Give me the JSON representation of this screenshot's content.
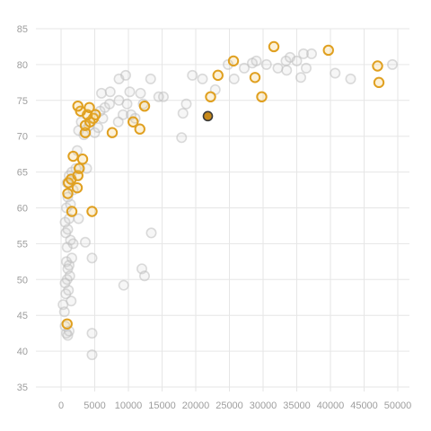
{
  "chart_data": {
    "type": "scatter",
    "title": "",
    "xlabel": "",
    "ylabel": "",
    "xlim": [
      -2000,
      52000
    ],
    "ylim": [
      34,
      86
    ],
    "x_ticks": [
      0,
      5000,
      10000,
      15000,
      20000,
      25000,
      30000,
      35000,
      40000,
      45000,
      50000
    ],
    "y_ticks": [
      35,
      40,
      45,
      50,
      55,
      60,
      65,
      70,
      75,
      80,
      85
    ],
    "grid": true,
    "colors": {
      "background_points": "#c8c8c8",
      "highlight_points": "#e0a020",
      "focus_point_fill": "#c7891a",
      "focus_point_stroke": "#3a3a3a",
      "grid": "#e6e6e6",
      "tick_label": "#9e9e9e"
    },
    "series": [
      {
        "role": "background",
        "points": [
          [
            300,
            46.5
          ],
          [
            500,
            45.5
          ],
          [
            600,
            43.5
          ],
          [
            800,
            42.5
          ],
          [
            1000,
            42.2
          ],
          [
            1200,
            42.8
          ],
          [
            700,
            48.0
          ],
          [
            900,
            50.0
          ],
          [
            600,
            49.5
          ],
          [
            1100,
            48.5
          ],
          [
            1500,
            47.0
          ],
          [
            1300,
            50.5
          ],
          [
            800,
            52.5
          ],
          [
            1000,
            51.5
          ],
          [
            1200,
            52.0
          ],
          [
            1600,
            53.0
          ],
          [
            900,
            54.5
          ],
          [
            1400,
            55.5
          ],
          [
            1800,
            55.0
          ],
          [
            3600,
            55.2
          ],
          [
            700,
            56.5
          ],
          [
            1000,
            57.0
          ],
          [
            600,
            58.0
          ],
          [
            1200,
            58.5
          ],
          [
            2600,
            58.5
          ],
          [
            800,
            60.0
          ],
          [
            1400,
            60.5
          ],
          [
            1000,
            61.5
          ],
          [
            1800,
            62.5
          ],
          [
            900,
            63.5
          ],
          [
            1200,
            64.5
          ],
          [
            1600,
            65.0
          ],
          [
            2200,
            65.5
          ],
          [
            3800,
            65.5
          ],
          [
            2400,
            68.0
          ],
          [
            4600,
            53.0
          ],
          [
            4600,
            42.5
          ],
          [
            4600,
            39.5
          ],
          [
            9300,
            49.2
          ],
          [
            12000,
            51.5
          ],
          [
            12400,
            50.5
          ],
          [
            13400,
            56.5
          ],
          [
            2600,
            70.8
          ],
          [
            3400,
            70.2
          ],
          [
            4200,
            71.5
          ],
          [
            5000,
            70.5
          ],
          [
            3000,
            72.0
          ],
          [
            5500,
            71.2
          ],
          [
            6200,
            72.5
          ],
          [
            5800,
            73.5
          ],
          [
            6500,
            74.0
          ],
          [
            7200,
            74.5
          ],
          [
            6000,
            76.0
          ],
          [
            7300,
            76.2
          ],
          [
            8500,
            72.0
          ],
          [
            8600,
            75.0
          ],
          [
            9800,
            74.5
          ],
          [
            9200,
            73.0
          ],
          [
            10200,
            76.2
          ],
          [
            10400,
            73.0
          ],
          [
            11000,
            72.5
          ],
          [
            11800,
            76.0
          ],
          [
            12200,
            74.5
          ],
          [
            13300,
            78.0
          ],
          [
            14500,
            75.5
          ],
          [
            15200,
            75.5
          ],
          [
            8600,
            78.0
          ],
          [
            9600,
            78.5
          ],
          [
            18100,
            73.2
          ],
          [
            18600,
            74.5
          ],
          [
            17900,
            69.8
          ],
          [
            19500,
            78.5
          ],
          [
            21000,
            78.0
          ],
          [
            22900,
            76.5
          ],
          [
            25700,
            78.0
          ],
          [
            24800,
            80.0
          ],
          [
            27200,
            79.5
          ],
          [
            28400,
            80.2
          ],
          [
            29000,
            80.5
          ],
          [
            30500,
            80.0
          ],
          [
            32200,
            79.5
          ],
          [
            33400,
            80.5
          ],
          [
            33500,
            79.2
          ],
          [
            34000,
            81.0
          ],
          [
            35000,
            80.5
          ],
          [
            35600,
            78.2
          ],
          [
            36000,
            81.5
          ],
          [
            36400,
            79.5
          ],
          [
            37200,
            81.5
          ],
          [
            40700,
            78.8
          ],
          [
            43000,
            78.0
          ],
          [
            49200,
            80.0
          ]
        ]
      },
      {
        "role": "highlight",
        "points": [
          [
            900,
            43.8
          ],
          [
            1600,
            59.5
          ],
          [
            4600,
            59.5
          ],
          [
            1000,
            62.0
          ],
          [
            2400,
            62.8
          ],
          [
            1100,
            63.5
          ],
          [
            1500,
            64.0
          ],
          [
            2500,
            64.5
          ],
          [
            2700,
            65.5
          ],
          [
            3200,
            66.8
          ],
          [
            1800,
            67.2
          ],
          [
            3600,
            70.5
          ],
          [
            7600,
            70.5
          ],
          [
            11700,
            71.0
          ],
          [
            10700,
            72.0
          ],
          [
            3600,
            71.5
          ],
          [
            4800,
            72.5
          ],
          [
            4300,
            72.0
          ],
          [
            3900,
            73.0
          ],
          [
            5100,
            73.0
          ],
          [
            2900,
            73.5
          ],
          [
            2500,
            74.2
          ],
          [
            4200,
            74.0
          ],
          [
            12400,
            74.2
          ],
          [
            22200,
            75.5
          ],
          [
            23300,
            78.5
          ],
          [
            25600,
            80.5
          ],
          [
            28800,
            78.2
          ],
          [
            29800,
            75.5
          ],
          [
            31600,
            82.5
          ],
          [
            39700,
            82.0
          ],
          [
            47000,
            79.8
          ],
          [
            47200,
            77.5
          ]
        ]
      },
      {
        "role": "focus",
        "points": [
          [
            21800,
            72.8
          ]
        ]
      }
    ]
  }
}
